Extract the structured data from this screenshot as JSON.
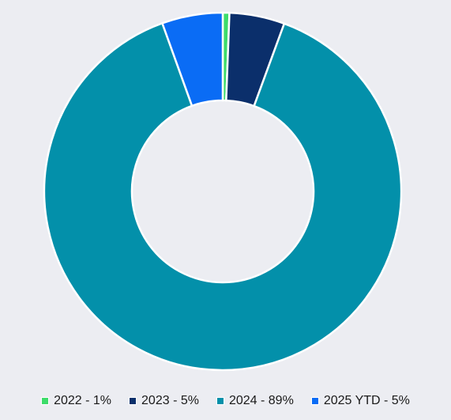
{
  "chart_data": {
    "type": "pie",
    "variant": "donut",
    "legend_position": "bottom",
    "categories": [
      "2022",
      "2023",
      "2024",
      "2025 YTD"
    ],
    "values": [
      1,
      5,
      89,
      5
    ],
    "slice_values": [
      0.6,
      5.0,
      88.9,
      5.5
    ],
    "colors": [
      "#3ddc6a",
      "#0b2f6b",
      "#0390aa",
      "#0a6cf5"
    ],
    "legend": [
      {
        "label": "2022 - 1%",
        "color": "#3ddc6a"
      },
      {
        "label": "2023 - 5%",
        "color": "#0b2f6b"
      },
      {
        "label": "2024 - 89%",
        "color": "#0390aa"
      },
      {
        "label": "2025 YTD - 5%",
        "color": "#0a6cf5"
      }
    ]
  }
}
